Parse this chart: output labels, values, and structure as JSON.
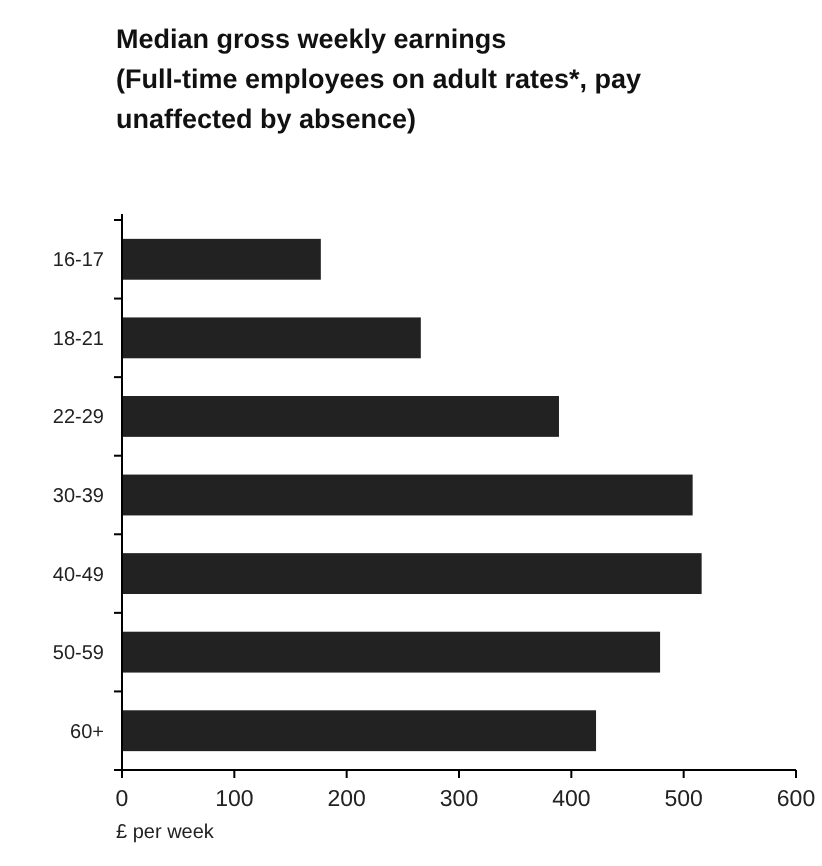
{
  "chart_data": {
    "type": "bar",
    "orientation": "horizontal",
    "title": "Median gross weekly earnings\n(Full-time employees on adult rates*, pay\nunaffected by absence)",
    "xlabel": "£ per week",
    "categories": [
      "16-17",
      "18-21",
      "22-29",
      "30-39",
      "40-49",
      "50-59",
      "60+"
    ],
    "values": [
      177,
      266,
      389,
      508,
      516,
      479,
      422
    ],
    "color": "#222222",
    "xlim": [
      0,
      600
    ],
    "xticks": [
      0,
      100,
      200,
      300,
      400,
      500,
      600
    ],
    "grid": false
  }
}
